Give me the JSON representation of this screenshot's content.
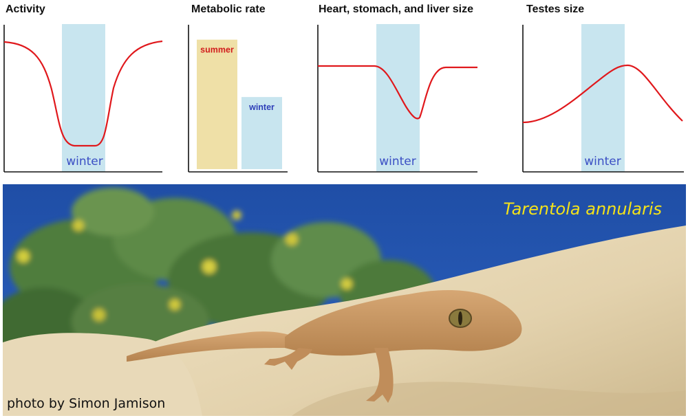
{
  "panels": {
    "activity": {
      "title": "Activity",
      "band_label": "winter"
    },
    "metabolic": {
      "title": "Metabolic rate",
      "bars": [
        {
          "label": "summer",
          "value": 0.88,
          "color": "#efe0a7",
          "label_color": "#d11c1c"
        },
        {
          "label": "winter",
          "value": 0.49,
          "color": "#c8e5ef",
          "label_color": "#2e3fb8"
        }
      ]
    },
    "organs": {
      "title": "Heart, stomach, and liver size",
      "band_label": "winter"
    },
    "testes": {
      "title": "Testes size",
      "band_label": "winter"
    }
  },
  "photo": {
    "species": "Tarentola annularis",
    "credit": "photo by Simon Jamison",
    "sky_color": "#1f4ea6",
    "rock_color": "#e6d6b3",
    "gecko_color": "#c99a68"
  },
  "colors": {
    "curve": "#e0181c",
    "winter_band": "#c8e5ef"
  }
}
